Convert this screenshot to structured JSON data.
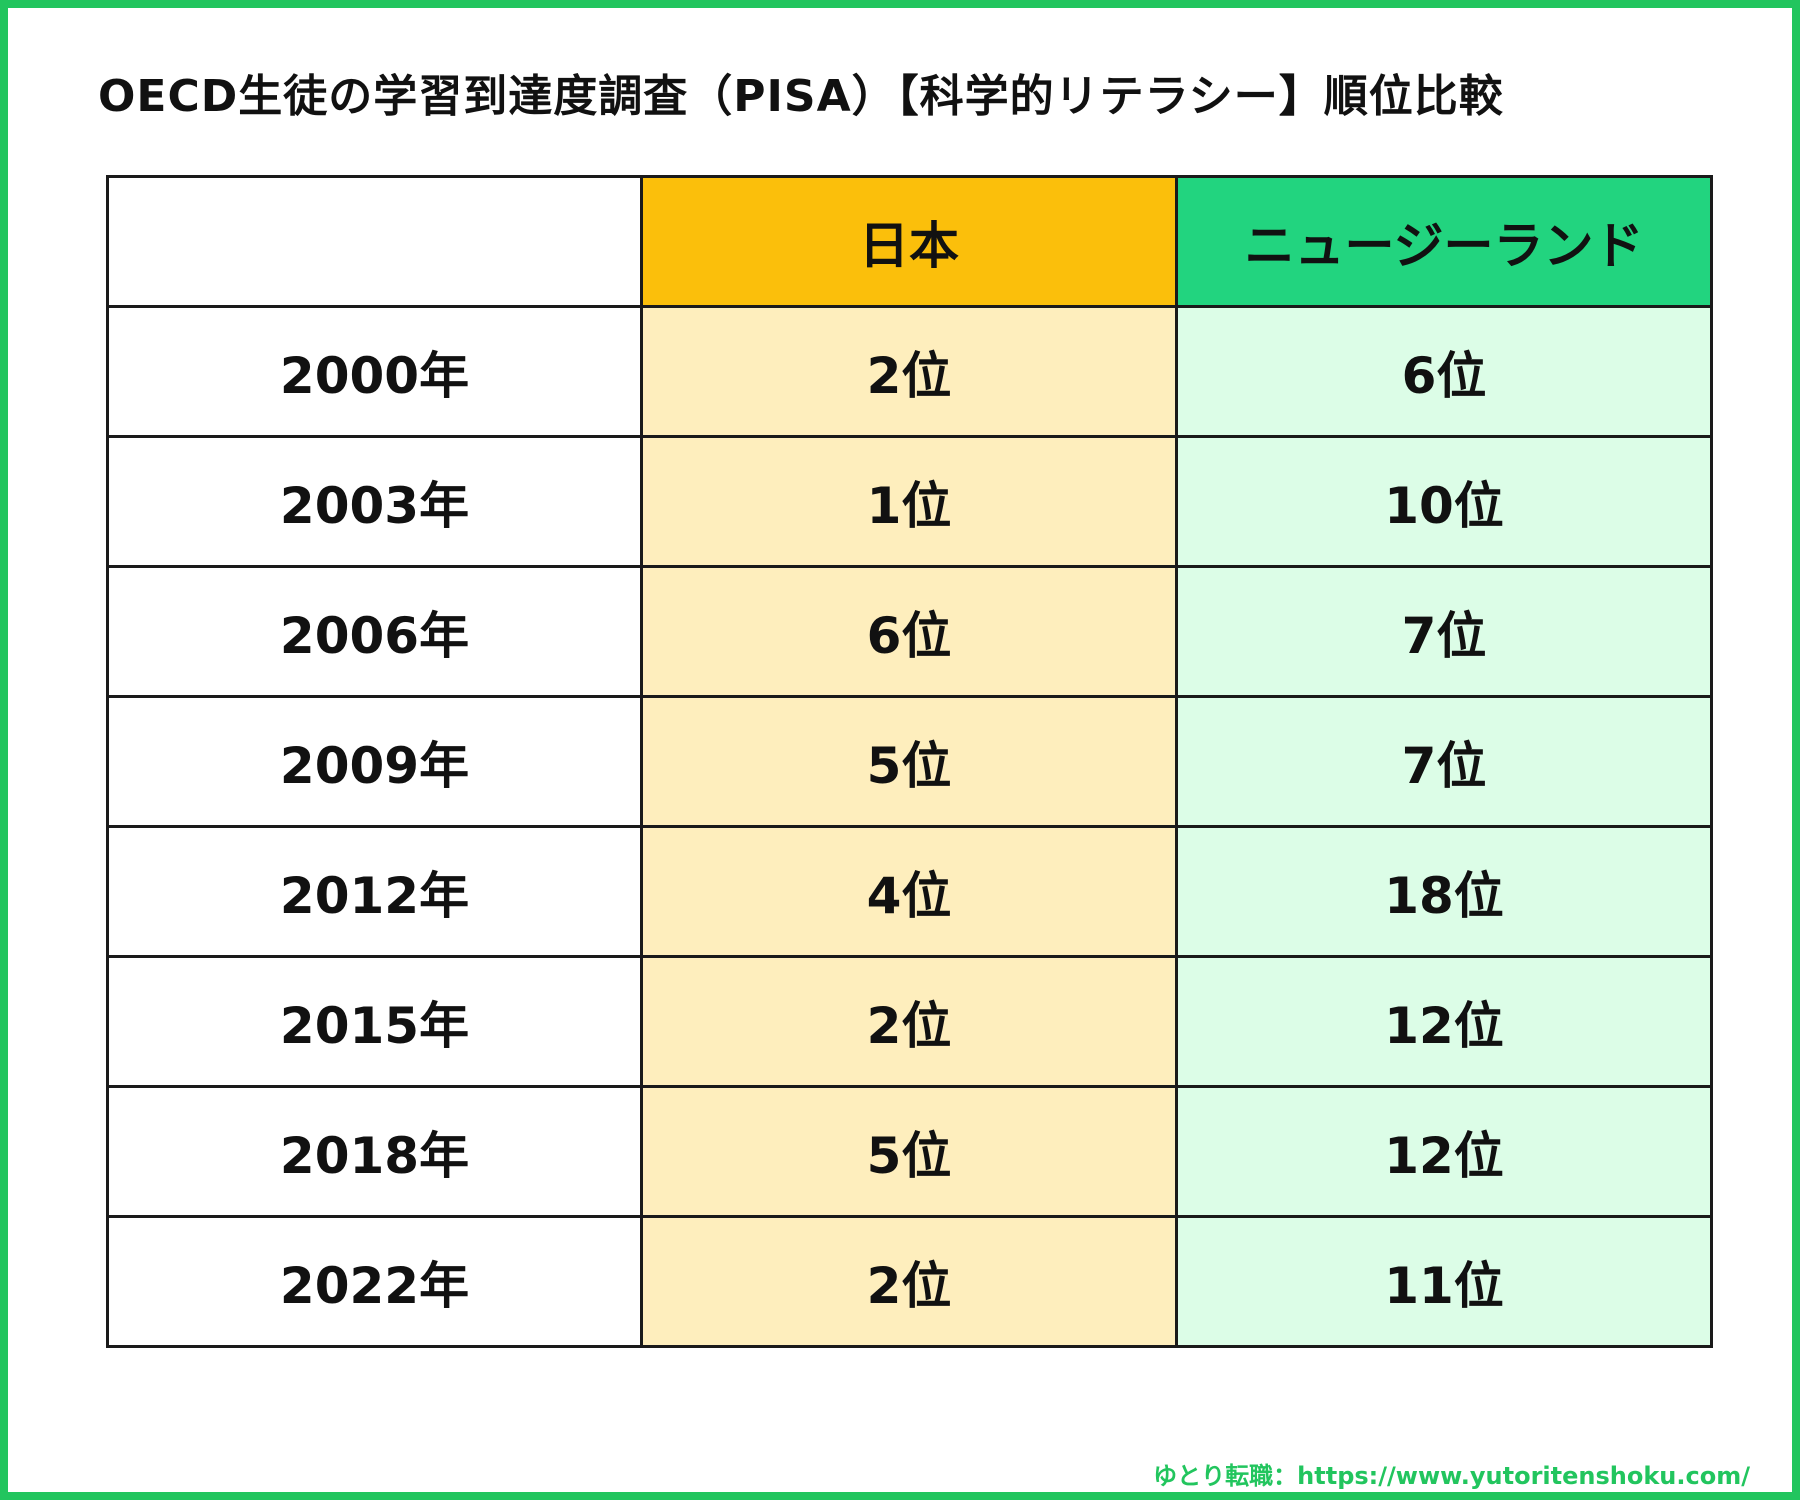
{
  "title": "OECD生徒の学習到達度調査（PISA）【科学的リテラシー】順位比較",
  "footer": "ゆとり転職：https://www.yutoritenshoku.com/",
  "colors": {
    "border": "#22c55e",
    "japan_header": "#fbbf0b",
    "japan_cells": "#feeebd",
    "nz_header": "#22d47f",
    "nz_cells": "#dcfde7"
  },
  "chart_data": {
    "type": "table",
    "columns": [
      "",
      "日本",
      "ニュージーランド"
    ],
    "rows": [
      {
        "year": "2000年",
        "japan": "2位",
        "nz": "6位"
      },
      {
        "year": "2003年",
        "japan": "1位",
        "nz": "10位"
      },
      {
        "year": "2006年",
        "japan": "6位",
        "nz": "7位"
      },
      {
        "year": "2009年",
        "japan": "5位",
        "nz": "7位"
      },
      {
        "year": "2012年",
        "japan": "4位",
        "nz": "18位"
      },
      {
        "year": "2015年",
        "japan": "2位",
        "nz": "12位"
      },
      {
        "year": "2018年",
        "japan": "5位",
        "nz": "12位"
      },
      {
        "year": "2022年",
        "japan": "2位",
        "nz": "11位"
      }
    ]
  }
}
